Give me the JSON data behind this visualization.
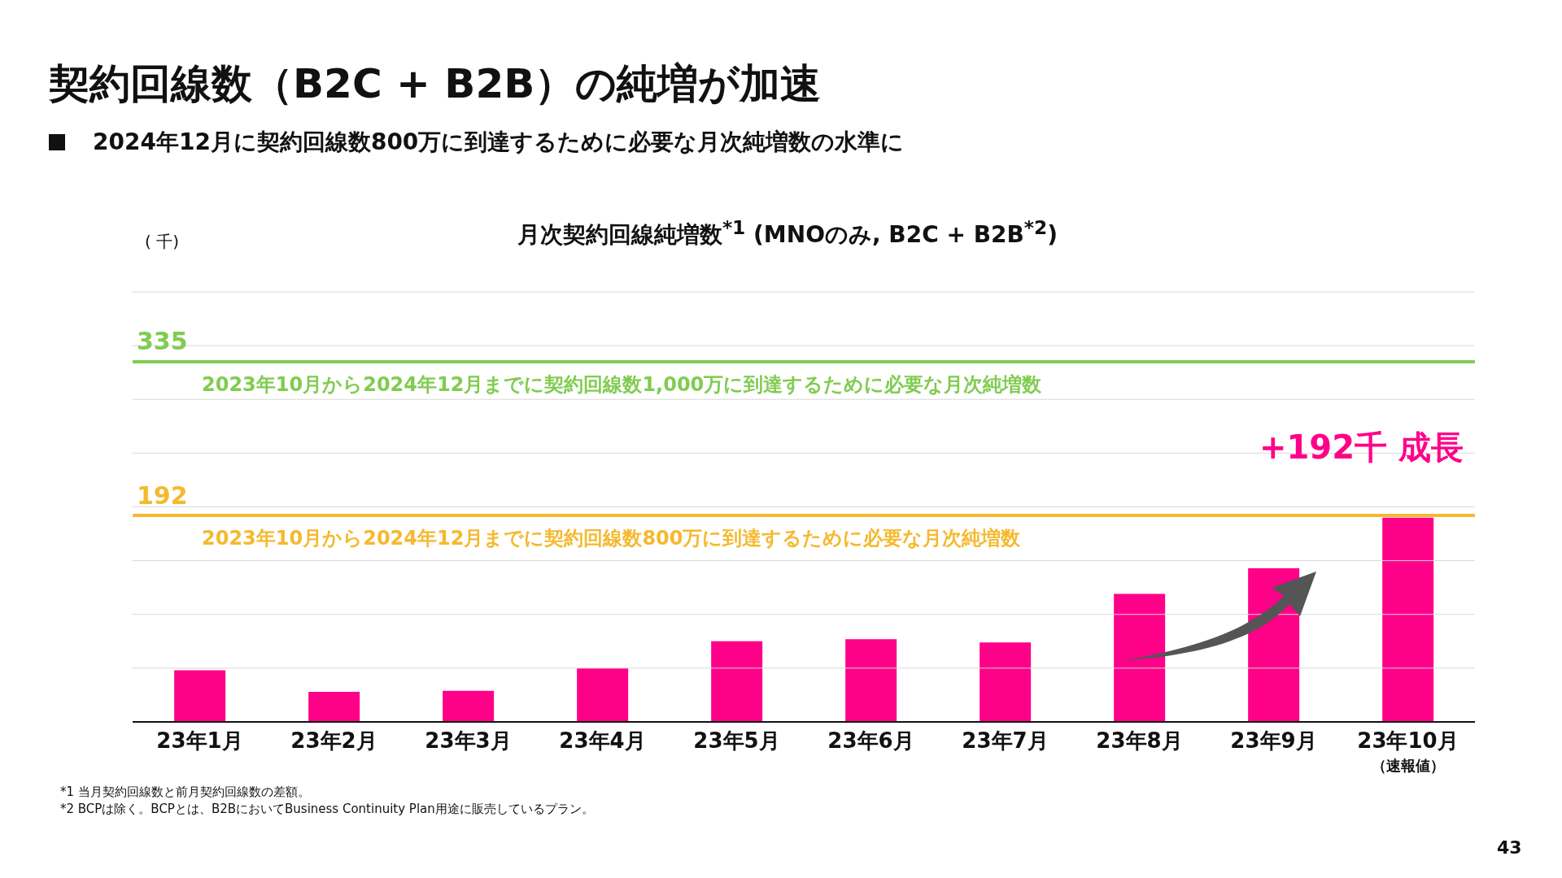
{
  "chart_data": {
    "type": "bar",
    "title": "契約回線数（B2C + B2B）の純増が加速",
    "subtitle": "2024年12月に契約回線数800万に到達するために必要な月次純増数の水準に",
    "xlabel": "月次契約回線純増数$^{*1}$ (MNOのみ, B2C + B2B$^{*2}$)",
    "ylabel": "( 千)",
    "categories": [
      "23年1月",
      "23年2月",
      "23年3月",
      "23年4月",
      "23年5月",
      "23年6月",
      "23年7月",
      "23年8月",
      "23年9月",
      "23年10月（速報値）"
    ],
    "values": [
      48,
      28,
      29,
      50,
      75,
      77,
      74,
      119,
      143,
      190
    ],
    "color": "#ff0088",
    "ylim": [
      0,
      400
    ],
    "yticks": [
      {
        "value": 0,
        "label": null
      },
      {
        "value": 50,
        "label": null
      },
      {
        "value": 100,
        "label": null
      },
      {
        "value": 150,
        "label": null
      },
      {
        "value": 200,
        "label": null
      },
      {
        "value": 250,
        "label": null
      },
      {
        "value": 300,
        "label": null
      },
      {
        "value": 350,
        "label": null
      },
      {
        "value": 400,
        "label": null
      }
    ],
    "tick_labels": "x",
    "grid": "y",
    "ref_lines": [
      {
        "axis": "y",
        "value": 335,
        "label": "335",
        "color": "#80cc50"
      },
      {
        "axis": "y",
        "value": 192,
        "label": "192",
        "color": "#f5b92e"
      }
    ],
    "annotations": [
      {
        "text": "2023年10月から2024年12月までに契約回線数1,000万に到達するために必要な月次純増数",
        "y": 335
      },
      {
        "text": "2023年10月から2024年12月までに契約回線数800万に到達するために必要な月次純増数",
        "y": 192
      },
      "+192千 成長",
      "*1 当月契約回線数と前月契約回線数の差額。",
      "*2 BCPは除く。BCPとは、B2BにおいてBusiness Continuity Plan用途に販売しているプラン。",
      "43"
    ]
  }
}
